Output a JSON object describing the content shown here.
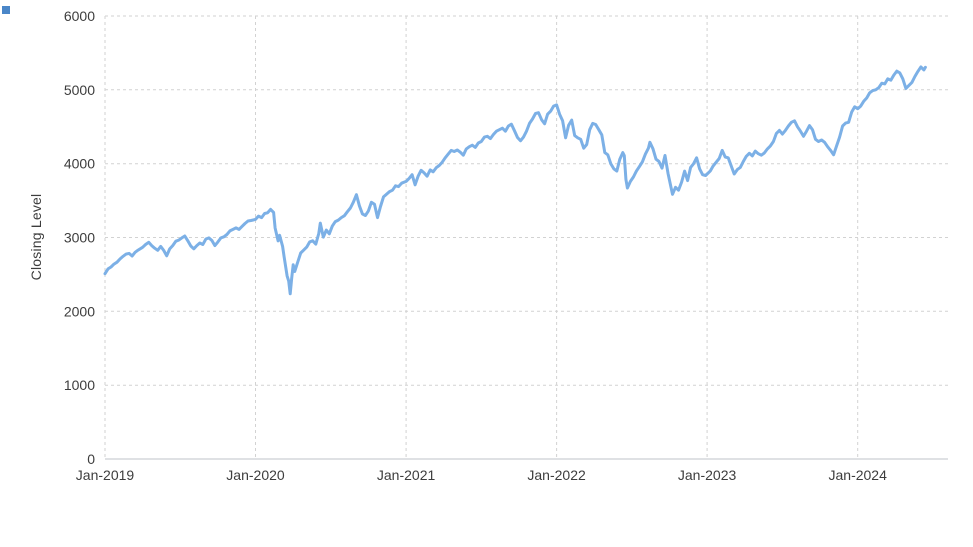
{
  "page": {
    "background": "#ffffff"
  },
  "selection_handle": {
    "color": "#4a86c8"
  },
  "chart_data": {
    "type": "line",
    "title": "",
    "xlabel": "",
    "ylabel": "Closing Level",
    "series_name": "Closing Level",
    "line_color": "#7cb0e6",
    "grid": true,
    "grid_color": "#d2d2d2",
    "axis_color": "#bfc3c9",
    "label_color": "#3d3d3d",
    "ylim": [
      0,
      6000
    ],
    "xlim": [
      2019.0,
      2024.6
    ],
    "y_ticks": [
      0,
      1000,
      2000,
      3000,
      4000,
      5000,
      6000
    ],
    "x_ticks": [
      {
        "pos": 2019,
        "label": "Jan-2019"
      },
      {
        "pos": 2020,
        "label": "Jan-2020"
      },
      {
        "pos": 2021,
        "label": "Jan-2021"
      },
      {
        "pos": 2022,
        "label": "Jan-2022"
      },
      {
        "pos": 2023,
        "label": "Jan-2023"
      },
      {
        "pos": 2024,
        "label": "Jan-2024"
      }
    ],
    "points": [
      [
        2019.0,
        2510
      ],
      [
        2019.02,
        2575
      ],
      [
        2019.04,
        2600
      ],
      [
        2019.06,
        2640
      ],
      [
        2019.08,
        2665
      ],
      [
        2019.1,
        2710
      ],
      [
        2019.12,
        2745
      ],
      [
        2019.14,
        2775
      ],
      [
        2019.16,
        2785
      ],
      [
        2019.18,
        2750
      ],
      [
        2019.2,
        2800
      ],
      [
        2019.22,
        2830
      ],
      [
        2019.25,
        2867
      ],
      [
        2019.27,
        2905
      ],
      [
        2019.29,
        2935
      ],
      [
        2019.31,
        2890
      ],
      [
        2019.33,
        2855
      ],
      [
        2019.35,
        2826
      ],
      [
        2019.37,
        2880
      ],
      [
        2019.39,
        2825
      ],
      [
        2019.41,
        2752
      ],
      [
        2019.43,
        2845
      ],
      [
        2019.45,
        2890
      ],
      [
        2019.47,
        2950
      ],
      [
        2019.49,
        2965
      ],
      [
        2019.51,
        2995
      ],
      [
        2019.53,
        3020
      ],
      [
        2019.55,
        2955
      ],
      [
        2019.57,
        2885
      ],
      [
        2019.59,
        2847
      ],
      [
        2019.61,
        2890
      ],
      [
        2019.63,
        2925
      ],
      [
        2019.65,
        2905
      ],
      [
        2019.67,
        2980
      ],
      [
        2019.69,
        2995
      ],
      [
        2019.71,
        2960
      ],
      [
        2019.73,
        2890
      ],
      [
        2019.75,
        2940
      ],
      [
        2019.77,
        2995
      ],
      [
        2019.79,
        3010
      ],
      [
        2019.81,
        3040
      ],
      [
        2019.83,
        3090
      ],
      [
        2019.85,
        3110
      ],
      [
        2019.87,
        3130
      ],
      [
        2019.89,
        3110
      ],
      [
        2019.91,
        3150
      ],
      [
        2019.93,
        3190
      ],
      [
        2019.95,
        3224
      ],
      [
        2019.97,
        3230
      ],
      [
        2020.0,
        3245
      ],
      [
        2020.02,
        3290
      ],
      [
        2020.04,
        3270
      ],
      [
        2020.06,
        3325
      ],
      [
        2020.08,
        3335
      ],
      [
        2020.1,
        3380
      ],
      [
        2020.12,
        3340
      ],
      [
        2020.13,
        3130
      ],
      [
        2020.15,
        2954
      ],
      [
        2020.16,
        3030
      ],
      [
        2020.18,
        2880
      ],
      [
        2020.19,
        2740
      ],
      [
        2020.21,
        2480
      ],
      [
        2020.22,
        2410
      ],
      [
        2020.23,
        2237
      ],
      [
        2020.24,
        2450
      ],
      [
        2020.25,
        2630
      ],
      [
        2020.26,
        2540
      ],
      [
        2020.28,
        2665
      ],
      [
        2020.3,
        2790
      ],
      [
        2020.32,
        2830
      ],
      [
        2020.34,
        2870
      ],
      [
        2020.36,
        2940
      ],
      [
        2020.38,
        2955
      ],
      [
        2020.4,
        2910
      ],
      [
        2020.42,
        3055
      ],
      [
        2020.43,
        3195
      ],
      [
        2020.45,
        3005
      ],
      [
        2020.47,
        3100
      ],
      [
        2020.49,
        3050
      ],
      [
        2020.51,
        3155
      ],
      [
        2020.53,
        3215
      ],
      [
        2020.55,
        3235
      ],
      [
        2020.57,
        3270
      ],
      [
        2020.59,
        3295
      ],
      [
        2020.61,
        3350
      ],
      [
        2020.63,
        3400
      ],
      [
        2020.65,
        3480
      ],
      [
        2020.67,
        3580
      ],
      [
        2020.69,
        3430
      ],
      [
        2020.71,
        3320
      ],
      [
        2020.73,
        3298
      ],
      [
        2020.75,
        3360
      ],
      [
        2020.77,
        3477
      ],
      [
        2020.79,
        3450
      ],
      [
        2020.81,
        3270
      ],
      [
        2020.83,
        3420
      ],
      [
        2020.85,
        3550
      ],
      [
        2020.87,
        3585
      ],
      [
        2020.89,
        3622
      ],
      [
        2020.91,
        3640
      ],
      [
        2020.93,
        3700
      ],
      [
        2020.95,
        3690
      ],
      [
        2020.97,
        3735
      ],
      [
        2021.0,
        3760
      ],
      [
        2021.02,
        3800
      ],
      [
        2021.04,
        3850
      ],
      [
        2021.06,
        3714
      ],
      [
        2021.08,
        3830
      ],
      [
        2021.1,
        3910
      ],
      [
        2021.12,
        3875
      ],
      [
        2021.14,
        3830
      ],
      [
        2021.16,
        3915
      ],
      [
        2021.18,
        3890
      ],
      [
        2021.2,
        3945
      ],
      [
        2021.22,
        3975
      ],
      [
        2021.24,
        4020
      ],
      [
        2021.26,
        4080
      ],
      [
        2021.28,
        4130
      ],
      [
        2021.3,
        4180
      ],
      [
        2021.32,
        4165
      ],
      [
        2021.34,
        4185
      ],
      [
        2021.36,
        4155
      ],
      [
        2021.38,
        4115
      ],
      [
        2021.4,
        4200
      ],
      [
        2021.42,
        4230
      ],
      [
        2021.44,
        4250
      ],
      [
        2021.46,
        4220
      ],
      [
        2021.48,
        4280
      ],
      [
        2021.5,
        4300
      ],
      [
        2021.52,
        4360
      ],
      [
        2021.54,
        4370
      ],
      [
        2021.56,
        4340
      ],
      [
        2021.58,
        4395
      ],
      [
        2021.6,
        4440
      ],
      [
        2021.62,
        4460
      ],
      [
        2021.64,
        4480
      ],
      [
        2021.66,
        4440
      ],
      [
        2021.68,
        4510
      ],
      [
        2021.7,
        4535
      ],
      [
        2021.72,
        4445
      ],
      [
        2021.74,
        4355
      ],
      [
        2021.76,
        4310
      ],
      [
        2021.78,
        4360
      ],
      [
        2021.8,
        4440
      ],
      [
        2021.82,
        4545
      ],
      [
        2021.84,
        4605
      ],
      [
        2021.86,
        4680
      ],
      [
        2021.88,
        4690
      ],
      [
        2021.9,
        4595
      ],
      [
        2021.92,
        4540
      ],
      [
        2021.94,
        4670
      ],
      [
        2021.96,
        4710
      ],
      [
        2021.98,
        4780
      ],
      [
        2022.0,
        4796
      ],
      [
        2022.02,
        4670
      ],
      [
        2022.04,
        4580
      ],
      [
        2022.06,
        4350
      ],
      [
        2022.08,
        4520
      ],
      [
        2022.1,
        4590
      ],
      [
        2022.12,
        4380
      ],
      [
        2022.14,
        4350
      ],
      [
        2022.16,
        4330
      ],
      [
        2022.18,
        4210
      ],
      [
        2022.2,
        4260
      ],
      [
        2022.22,
        4460
      ],
      [
        2022.24,
        4545
      ],
      [
        2022.26,
        4530
      ],
      [
        2022.28,
        4460
      ],
      [
        2022.3,
        4390
      ],
      [
        2022.32,
        4150
      ],
      [
        2022.34,
        4120
      ],
      [
        2022.36,
        4000
      ],
      [
        2022.38,
        3930
      ],
      [
        2022.4,
        3900
      ],
      [
        2022.42,
        4060
      ],
      [
        2022.44,
        4150
      ],
      [
        2022.45,
        4108
      ],
      [
        2022.46,
        3790
      ],
      [
        2022.47,
        3670
      ],
      [
        2022.49,
        3760
      ],
      [
        2022.51,
        3820
      ],
      [
        2022.53,
        3900
      ],
      [
        2022.55,
        3960
      ],
      [
        2022.57,
        4025
      ],
      [
        2022.59,
        4130
      ],
      [
        2022.61,
        4210
      ],
      [
        2022.62,
        4290
      ],
      [
        2022.64,
        4200
      ],
      [
        2022.66,
        4060
      ],
      [
        2022.68,
        4030
      ],
      [
        2022.7,
        3940
      ],
      [
        2022.72,
        4110
      ],
      [
        2022.74,
        3870
      ],
      [
        2022.76,
        3680
      ],
      [
        2022.77,
        3585
      ],
      [
        2022.79,
        3680
      ],
      [
        2022.81,
        3640
      ],
      [
        2022.83,
        3750
      ],
      [
        2022.85,
        3900
      ],
      [
        2022.87,
        3770
      ],
      [
        2022.89,
        3950
      ],
      [
        2022.91,
        4000
      ],
      [
        2022.93,
        4080
      ],
      [
        2022.95,
        3930
      ],
      [
        2022.97,
        3850
      ],
      [
        2022.99,
        3840
      ],
      [
        2023.02,
        3900
      ],
      [
        2023.04,
        3970
      ],
      [
        2023.06,
        4020
      ],
      [
        2023.08,
        4070
      ],
      [
        2023.1,
        4180
      ],
      [
        2023.12,
        4090
      ],
      [
        2023.14,
        4080
      ],
      [
        2023.16,
        3970
      ],
      [
        2023.18,
        3860
      ],
      [
        2023.2,
        3920
      ],
      [
        2023.22,
        3950
      ],
      [
        2023.24,
        4030
      ],
      [
        2023.26,
        4100
      ],
      [
        2023.28,
        4140
      ],
      [
        2023.3,
        4105
      ],
      [
        2023.32,
        4170
      ],
      [
        2023.34,
        4135
      ],
      [
        2023.36,
        4115
      ],
      [
        2023.38,
        4145
      ],
      [
        2023.4,
        4200
      ],
      [
        2023.42,
        4240
      ],
      [
        2023.44,
        4300
      ],
      [
        2023.46,
        4410
      ],
      [
        2023.48,
        4450
      ],
      [
        2023.5,
        4400
      ],
      [
        2023.52,
        4450
      ],
      [
        2023.54,
        4510
      ],
      [
        2023.56,
        4560
      ],
      [
        2023.58,
        4580
      ],
      [
        2023.6,
        4500
      ],
      [
        2023.62,
        4440
      ],
      [
        2023.64,
        4370
      ],
      [
        2023.66,
        4440
      ],
      [
        2023.68,
        4515
      ],
      [
        2023.7,
        4460
      ],
      [
        2023.72,
        4330
      ],
      [
        2023.74,
        4300
      ],
      [
        2023.76,
        4320
      ],
      [
        2023.78,
        4290
      ],
      [
        2023.8,
        4230
      ],
      [
        2023.82,
        4180
      ],
      [
        2023.84,
        4120
      ],
      [
        2023.86,
        4240
      ],
      [
        2023.88,
        4360
      ],
      [
        2023.9,
        4510
      ],
      [
        2023.92,
        4550
      ],
      [
        2023.94,
        4560
      ],
      [
        2023.96,
        4700
      ],
      [
        2023.98,
        4770
      ],
      [
        2024.0,
        4745
      ],
      [
        2024.02,
        4780
      ],
      [
        2024.04,
        4845
      ],
      [
        2024.06,
        4890
      ],
      [
        2024.08,
        4960
      ],
      [
        2024.1,
        4990
      ],
      [
        2024.12,
        5000
      ],
      [
        2024.14,
        5030
      ],
      [
        2024.16,
        5090
      ],
      [
        2024.18,
        5080
      ],
      [
        2024.2,
        5150
      ],
      [
        2024.22,
        5130
      ],
      [
        2024.24,
        5200
      ],
      [
        2024.26,
        5254
      ],
      [
        2024.28,
        5230
      ],
      [
        2024.3,
        5150
      ],
      [
        2024.32,
        5020
      ],
      [
        2024.34,
        5060
      ],
      [
        2024.36,
        5100
      ],
      [
        2024.38,
        5180
      ],
      [
        2024.4,
        5250
      ],
      [
        2024.42,
        5310
      ],
      [
        2024.44,
        5270
      ],
      [
        2024.45,
        5305
      ]
    ]
  }
}
